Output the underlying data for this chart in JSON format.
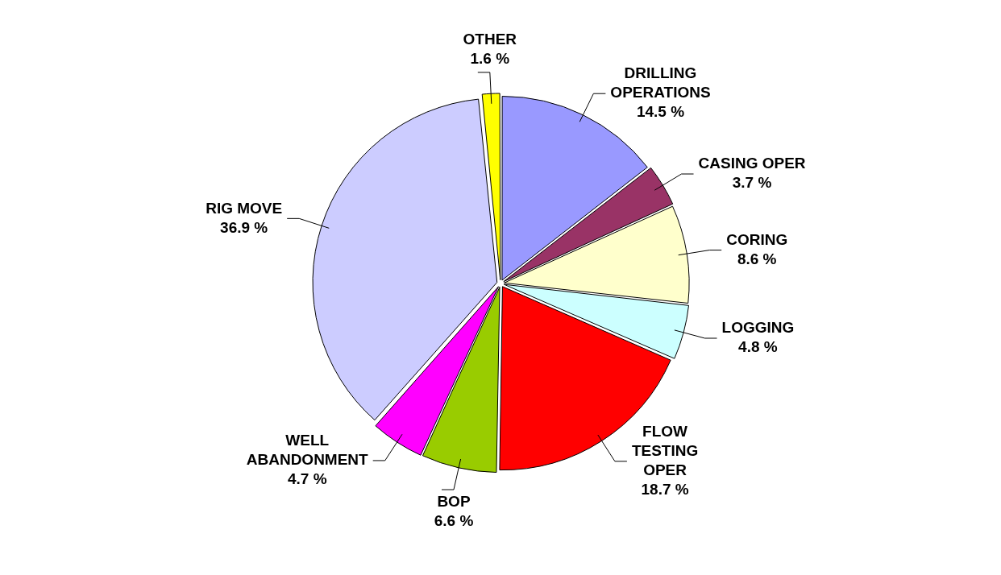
{
  "chart_data": {
    "type": "pie",
    "categories": [
      "DRILLING OPERATIONS",
      "CASING OPER",
      "CORING",
      "LOGGING",
      "FLOW TESTING OPER",
      "BOP",
      "WELL ABANDONMENT",
      "RIG MOVE",
      "OTHER"
    ],
    "values": [
      14.5,
      3.7,
      8.6,
      4.8,
      18.7,
      6.6,
      4.7,
      36.9,
      1.6
    ],
    "value_labels": [
      "14.5 %",
      "3.7 %",
      "8.6 %",
      "4.8 %",
      "18.7 %",
      "6.6 %",
      "4.7 %",
      "36.9 %",
      "1.6 %"
    ],
    "colors": [
      "#9999ff",
      "#993366",
      "#ffffcc",
      "#ccffff",
      "#ff0000",
      "#99cc00",
      "#ff00ff",
      "#ccccff",
      "#ffff00"
    ],
    "legend": false
  }
}
